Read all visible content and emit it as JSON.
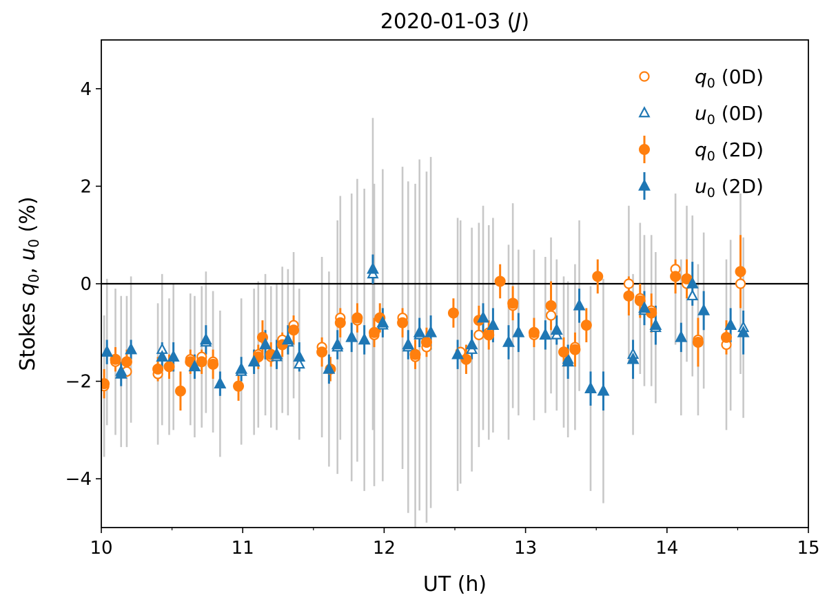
{
  "chart_data": {
    "type": "scatter",
    "title": "2020-01-03 (",
    "title_band": "J",
    "title_close": ")",
    "xlabel": "UT (h)",
    "ylabel_parts": [
      "Stokes ",
      "q",
      "0",
      ", ",
      "u",
      "0",
      " (%)"
    ],
    "xlim": [
      10,
      15
    ],
    "ylim": [
      -5,
      5
    ],
    "xticks": [
      10,
      11,
      12,
      13,
      14,
      15
    ],
    "xtick_labels": [
      "10",
      "11",
      "12",
      "13",
      "14",
      "15"
    ],
    "yticks": [
      -4,
      -2,
      0,
      2,
      4
    ],
    "ytick_labels": [
      "−4",
      "−2",
      "0",
      "2",
      "4"
    ],
    "hline_y": 0,
    "colors": {
      "orange": "#ff7f0e",
      "blue": "#1f77b4",
      "gray_err": "#c8c8c8"
    },
    "legend": [
      {
        "sym": "q",
        "sub": "0",
        "tag": "(0D)",
        "marker": "open-circle",
        "color": "#ff7f0e"
      },
      {
        "sym": "u",
        "sub": "0",
        "tag": "(0D)",
        "marker": "open-triangle",
        "color": "#1f77b4"
      },
      {
        "sym": "q",
        "sub": "0",
        "tag": "(2D)",
        "marker": "filled-circle",
        "color": "#ff7f0e"
      },
      {
        "sym": "u",
        "sub": "0",
        "tag": "(2D)",
        "marker": "filled-triangle",
        "color": "#1f77b4"
      }
    ],
    "series": [
      {
        "name": "q0 (0D)",
        "marker": "open-circle",
        "color": "#ff7f0e",
        "errcolor": "#c8c8c8",
        "x": [
          10.02,
          10.1,
          10.18,
          10.4,
          10.48,
          10.63,
          10.71,
          10.79,
          11.11,
          11.2,
          11.28,
          11.36,
          11.56,
          11.69,
          11.81,
          11.93,
          12.13,
          12.22,
          12.3,
          12.54,
          12.67,
          12.74,
          12.91,
          13.06,
          13.18,
          13.27,
          13.35,
          13.73,
          13.81,
          13.89,
          14.06,
          14.14,
          14.22,
          14.42,
          14.52
        ],
        "y": [
          -2.1,
          -1.6,
          -1.8,
          -1.85,
          -1.7,
          -1.55,
          -1.5,
          -1.6,
          -1.45,
          -1.5,
          -1.15,
          -0.85,
          -1.3,
          -0.7,
          -0.75,
          -1.05,
          -0.7,
          -1.5,
          -1.3,
          -1.4,
          -1.05,
          -1.0,
          -0.45,
          -1.05,
          -0.65,
          -1.4,
          -1.3,
          0.0,
          -0.3,
          -0.55,
          0.3,
          0.0,
          -1.15,
          -1.25,
          0.0
        ],
        "err": [
          1.45,
          1.5,
          1.55,
          1.45,
          1.4,
          1.35,
          1.45,
          1.45,
          1.5,
          1.45,
          1.5,
          1.5,
          1.85,
          2.5,
          2.9,
          3.1,
          3.1,
          3.55,
          3.6,
          2.7,
          2.3,
          2.2,
          2.1,
          1.75,
          1.6,
          1.55,
          1.7,
          1.6,
          1.55,
          1.55,
          1.55,
          1.6,
          1.55,
          1.75,
          1.85
        ]
      },
      {
        "name": "u0 (0D)",
        "marker": "open-triangle",
        "color": "#1f77b4",
        "errcolor": "#c8c8c8",
        "x": [
          10.04,
          10.14,
          10.21,
          10.43,
          10.51,
          10.66,
          10.74,
          10.84,
          10.99,
          11.08,
          11.16,
          11.24,
          11.32,
          11.4,
          11.61,
          11.67,
          11.77,
          11.86,
          11.92,
          11.99,
          12.17,
          12.25,
          12.33,
          12.52,
          12.62,
          12.7,
          12.77,
          12.88,
          12.95,
          13.14,
          13.22,
          13.3,
          13.38,
          13.46,
          13.55,
          13.76,
          13.84,
          13.92,
          14.1,
          14.18,
          14.26,
          14.45,
          14.54
        ],
        "y": [
          -1.4,
          -1.8,
          -1.35,
          -1.35,
          -1.5,
          -1.7,
          -1.2,
          -2.05,
          -1.8,
          -1.6,
          -1.25,
          -1.5,
          -1.2,
          -1.65,
          -1.75,
          -1.3,
          -1.1,
          -1.15,
          0.2,
          -0.85,
          -1.3,
          -1.05,
          -1.0,
          -1.45,
          -1.35,
          -0.7,
          -0.85,
          -1.2,
          -1.0,
          -1.05,
          -1.05,
          -1.55,
          -0.45,
          -2.15,
          -2.2,
          -1.45,
          -0.55,
          -0.9,
          -1.1,
          -0.25,
          -0.55,
          -0.85,
          -0.9
        ],
        "err": [
          1.5,
          1.55,
          1.5,
          1.55,
          1.5,
          1.45,
          1.45,
          1.5,
          1.5,
          1.5,
          1.45,
          1.5,
          1.5,
          1.55,
          2.0,
          2.6,
          2.95,
          3.1,
          3.2,
          3.2,
          3.4,
          3.6,
          3.6,
          2.8,
          2.5,
          2.3,
          2.2,
          2.0,
          1.7,
          1.6,
          1.55,
          1.6,
          1.75,
          2.1,
          2.3,
          1.65,
          1.55,
          1.55,
          1.6,
          1.65,
          1.6,
          1.75,
          1.85
        ]
      },
      {
        "name": "q0 (2D)",
        "marker": "filled-circle",
        "color": "#ff7f0e",
        "x": [
          10.02,
          10.1,
          10.18,
          10.4,
          10.48,
          10.56,
          10.63,
          10.71,
          10.79,
          10.97,
          11.11,
          11.14,
          11.2,
          11.28,
          11.36,
          11.56,
          11.62,
          11.69,
          11.81,
          11.93,
          11.97,
          12.13,
          12.22,
          12.3,
          12.49,
          12.58,
          12.67,
          12.74,
          12.82,
          12.91,
          13.06,
          13.18,
          13.27,
          13.35,
          13.43,
          13.51,
          13.73,
          13.81,
          13.89,
          14.06,
          14.14,
          14.22,
          14.42,
          14.52
        ],
        "y": [
          -2.05,
          -1.55,
          -1.6,
          -1.75,
          -1.7,
          -2.2,
          -1.6,
          -1.6,
          -1.65,
          -2.1,
          -1.5,
          -1.1,
          -1.45,
          -1.25,
          -0.95,
          -1.4,
          -1.75,
          -0.8,
          -0.7,
          -1.0,
          -0.7,
          -0.8,
          -1.45,
          -1.2,
          -0.6,
          -1.55,
          -0.75,
          -1.05,
          0.05,
          -0.4,
          -1.0,
          -0.45,
          -1.4,
          -1.35,
          -0.85,
          0.15,
          -0.25,
          -0.35,
          -0.6,
          0.15,
          0.1,
          -1.2,
          -1.1,
          0.25
        ],
        "err": [
          0.3,
          0.25,
          0.25,
          0.25,
          0.25,
          0.4,
          0.25,
          0.25,
          0.3,
          0.3,
          0.25,
          0.35,
          0.25,
          0.25,
          0.3,
          0.3,
          0.25,
          0.3,
          0.3,
          0.3,
          0.3,
          0.3,
          0.3,
          0.3,
          0.3,
          0.3,
          0.3,
          0.3,
          0.35,
          0.35,
          0.3,
          0.5,
          0.3,
          0.35,
          0.35,
          0.35,
          0.4,
          0.35,
          0.4,
          0.35,
          0.4,
          0.5,
          0.35,
          0.75
        ]
      },
      {
        "name": "u0 (2D)",
        "marker": "filled-triangle",
        "color": "#1f77b4",
        "x": [
          10.04,
          10.14,
          10.21,
          10.43,
          10.51,
          10.66,
          10.74,
          10.84,
          10.99,
          11.08,
          11.16,
          11.24,
          11.32,
          11.4,
          11.61,
          11.67,
          11.77,
          11.86,
          11.92,
          11.99,
          12.17,
          12.25,
          12.33,
          12.52,
          12.62,
          12.7,
          12.77,
          12.88,
          12.95,
          13.14,
          13.22,
          13.3,
          13.38,
          13.46,
          13.55,
          13.76,
          13.84,
          13.92,
          14.1,
          14.18,
          14.26,
          14.45,
          14.54
        ],
        "y": [
          -1.4,
          -1.85,
          -1.35,
          -1.5,
          -1.5,
          -1.7,
          -1.15,
          -2.05,
          -1.75,
          -1.6,
          -1.25,
          -1.45,
          -1.15,
          -1.5,
          -1.75,
          -1.25,
          -1.1,
          -1.15,
          0.3,
          -0.8,
          -1.25,
          -1.0,
          -1.0,
          -1.45,
          -1.25,
          -0.7,
          -0.85,
          -1.2,
          -1.0,
          -1.05,
          -0.95,
          -1.6,
          -0.45,
          -2.15,
          -2.2,
          -1.55,
          -0.5,
          -0.85,
          -1.1,
          0.0,
          -0.55,
          -0.85,
          -1.0
        ],
        "err": [
          0.25,
          0.25,
          0.2,
          0.3,
          0.3,
          0.25,
          0.3,
          0.25,
          0.25,
          0.25,
          0.3,
          0.3,
          0.3,
          0.3,
          0.3,
          0.3,
          0.3,
          0.3,
          0.3,
          0.3,
          0.3,
          0.3,
          0.35,
          0.3,
          0.3,
          0.3,
          0.35,
          0.35,
          0.4,
          0.3,
          0.3,
          0.35,
          0.35,
          0.35,
          0.4,
          0.4,
          0.35,
          0.4,
          0.3,
          0.45,
          0.4,
          0.35,
          0.45
        ]
      }
    ]
  }
}
